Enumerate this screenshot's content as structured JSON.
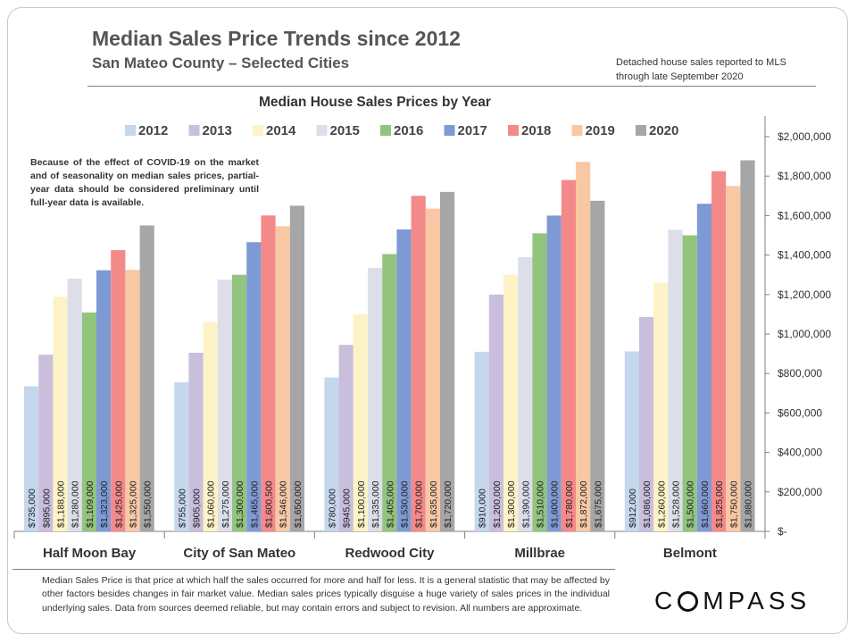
{
  "header": {
    "title": "Median Sales Price Trends since 2012",
    "subtitle": "San Mateo County – Selected Cities",
    "source_note": "Detached house sales reported to MLS through late September 2020"
  },
  "covid_note": "Because of the effect of COVID-19 on the market and of seasonality on median sales prices, partial-year data should be considered preliminary until full-year data is available.",
  "footnote": "Median Sales Price is that price at which half the sales occurred for more and half for less. It is a general statistic that may be affected by other factors besides changes in fair market value. Median sales prices typically disguise a huge variety of sales prices in the individual underlying sales. Data from sources deemed reliable, but may contain errors and subject to revision.  All numbers are approximate.",
  "logo": {
    "pre": "C",
    "o": "O",
    "post": "MPASS"
  },
  "chart_data": {
    "type": "bar",
    "title": "Median House Sales Prices by Year",
    "categories": [
      "Half Moon Bay",
      "City of San Mateo",
      "Redwood City",
      "Millbrae",
      "Belmont"
    ],
    "series": [
      {
        "name": "2012",
        "color": "#c4d7ed",
        "values": [
          735000,
          755000,
          780000,
          910000,
          912000
        ]
      },
      {
        "name": "2013",
        "color": "#c9bfdd",
        "values": [
          895000,
          905000,
          945000,
          1200000,
          1086000
        ]
      },
      {
        "name": "2014",
        "color": "#fdf3c6",
        "values": [
          1188000,
          1060000,
          1100000,
          1300000,
          1260000
        ]
      },
      {
        "name": "2015",
        "color": "#dcdfea",
        "values": [
          1280000,
          1275000,
          1335000,
          1390000,
          1528000
        ]
      },
      {
        "name": "2016",
        "color": "#92c47e",
        "values": [
          1109000,
          1300000,
          1405000,
          1510000,
          1500000
        ]
      },
      {
        "name": "2017",
        "color": "#7e9ad5",
        "values": [
          1323000,
          1465000,
          1530000,
          1600000,
          1660000
        ]
      },
      {
        "name": "2018",
        "color": "#f4898a",
        "values": [
          1425000,
          1600500,
          1700000,
          1780000,
          1825000
        ]
      },
      {
        "name": "2019",
        "color": "#f8c8a5",
        "values": [
          1325000,
          1546000,
          1635000,
          1872000,
          1750000
        ]
      },
      {
        "name": "2020",
        "color": "#a6a6a6",
        "values": [
          1550000,
          1650000,
          1720000,
          1675000,
          1880000
        ]
      }
    ],
    "data_labels": [
      [
        "$735,000",
        "$895,000",
        "$1,188,000",
        "$1,280,000",
        "$1,109,000",
        "$1,323,000",
        "$1,425,000",
        "$1,325,000",
        "$1,550,000"
      ],
      [
        "$755,000",
        "$905,000",
        "$1,060,000",
        "$1,275,000",
        "$1,300,000",
        "$1,465,000",
        "$1,600,500",
        "$1,546,000",
        "$1,650,000"
      ],
      [
        "$780,000",
        "$945,000",
        "$1,100,000",
        "$1,335,000",
        "$1,405,000",
        "$1,530,000",
        "$1,700,000",
        "$1,635,000",
        "$1,720,000"
      ],
      [
        "$910,000",
        "$1,200,000",
        "$1,300,000",
        "$1,390,000",
        "$1,510,000",
        "$1,600,000",
        "$1,780,000",
        "$1,872,000",
        "$1,675,000"
      ],
      [
        "$912,000",
        "$1,086,000",
        "$1,260,000",
        "$1,528,000",
        "$1,500,000",
        "$1,660,000",
        "$1,825,000",
        "$1,750,000",
        "$1,880,000"
      ]
    ],
    "y_ticks": [
      0,
      200000,
      400000,
      600000,
      800000,
      1000000,
      1200000,
      1400000,
      1600000,
      1800000,
      2000000
    ],
    "y_tick_labels": [
      "$-",
      "$200,000",
      "$400,000",
      "$600,000",
      "$800,000",
      "$1,000,000",
      "$1,200,000",
      "$1,400,000",
      "$1,600,000",
      "$1,800,000",
      "$2,000,000"
    ],
    "ylim": [
      0,
      2000000
    ],
    "y_axis_side": "right",
    "legend_position": "top",
    "grid": false
  }
}
